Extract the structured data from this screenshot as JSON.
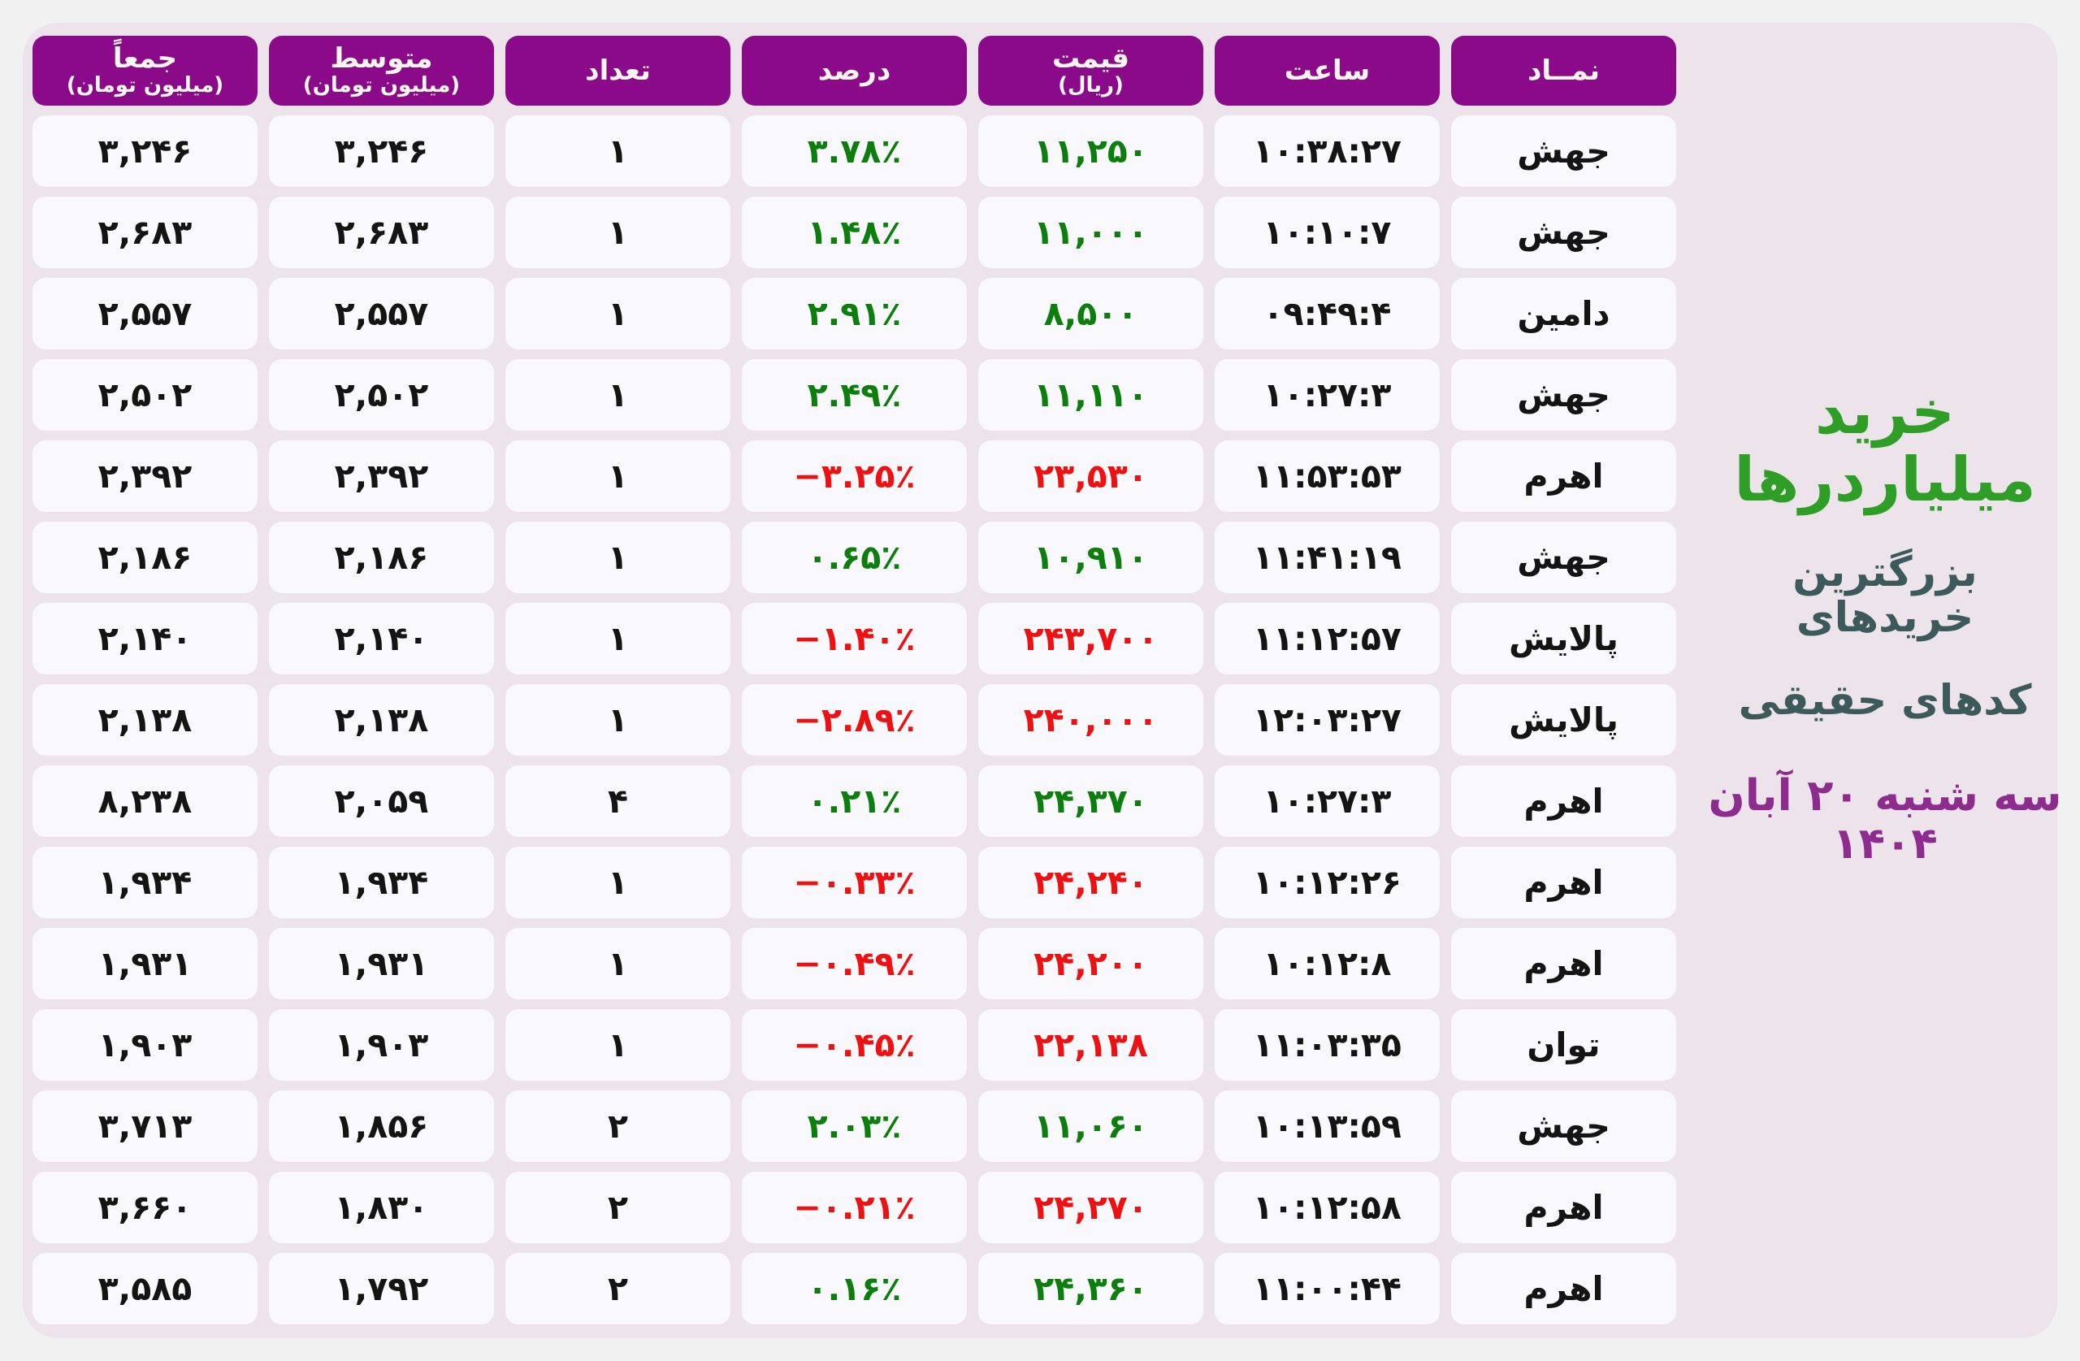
{
  "colors": {
    "page_background": "#f2f1f1",
    "board_background": "#ece4ea",
    "header_bg": "#8a0a8a",
    "cell_bg": "#f9f8fc",
    "up_green": "#0b7e0b",
    "down_red": "#ee1111",
    "text_dark": "#141414",
    "title_green": "#2f9e27",
    "subtitle_dark": "#3d5a5a",
    "date_purple": "#8e2b8e"
  },
  "side_panel": {
    "title": "خرید میلیاردرها",
    "subtitle_line1": "بزرگترین خریدهای",
    "subtitle_line2": "کدهای حقیقی",
    "date": "سه شنبه ۲۰ آبان ۱۴۰۴"
  },
  "table": {
    "columns": [
      {
        "key": "symbol",
        "label": "نمــاد"
      },
      {
        "key": "time",
        "label": "ساعت"
      },
      {
        "key": "price",
        "label": "قیمت",
        "sublabel": "(ریال)"
      },
      {
        "key": "percent",
        "label": "درصد"
      },
      {
        "key": "count",
        "label": "تعداد"
      },
      {
        "key": "avg",
        "label": "متوسط",
        "sublabel": "(میلیون تومان)"
      },
      {
        "key": "total",
        "label": "جمعاً",
        "sublabel": "(میلیون تومان)"
      }
    ],
    "rows": [
      {
        "symbol": "جهش",
        "time": "۱۰:۳۸:۲۷",
        "price": "۱۱,۲۵۰",
        "percent": "۳.۷۸٪",
        "trend": "up",
        "count": "۱",
        "avg": "۳,۲۴۶",
        "total": "۳,۲۴۶"
      },
      {
        "symbol": "جهش",
        "time": "۱۰:۱۰:۷",
        "price": "۱۱,۰۰۰",
        "percent": "۱.۴۸٪",
        "trend": "up",
        "count": "۱",
        "avg": "۲,۶۸۳",
        "total": "۲,۶۸۳"
      },
      {
        "symbol": "دامین",
        "time": "۰۹:۴۹:۴",
        "price": "۸,۵۰۰",
        "percent": "۲.۹۱٪",
        "trend": "up",
        "count": "۱",
        "avg": "۲,۵۵۷",
        "total": "۲,۵۵۷"
      },
      {
        "symbol": "جهش",
        "time": "۱۰:۲۷:۳",
        "price": "۱۱,۱۱۰",
        "percent": "۲.۴۹٪",
        "trend": "up",
        "count": "۱",
        "avg": "۲,۵۰۲",
        "total": "۲,۵۰۲"
      },
      {
        "symbol": "اهرم",
        "time": "۱۱:۵۳:۵۳",
        "price": "۲۳,۵۳۰",
        "percent": "−۳.۲۵٪",
        "trend": "down",
        "count": "۱",
        "avg": "۲,۳۹۲",
        "total": "۲,۳۹۲"
      },
      {
        "symbol": "جهش",
        "time": "۱۱:۴۱:۱۹",
        "price": "۱۰,۹۱۰",
        "percent": "۰.۶۵٪",
        "trend": "up",
        "count": "۱",
        "avg": "۲,۱۸۶",
        "total": "۲,۱۸۶"
      },
      {
        "symbol": "پالایش",
        "time": "۱۱:۱۲:۵۷",
        "price": "۲۴۳,۷۰۰",
        "percent": "−۱.۴۰٪",
        "trend": "down",
        "count": "۱",
        "avg": "۲,۱۴۰",
        "total": "۲,۱۴۰"
      },
      {
        "symbol": "پالایش",
        "time": "۱۲:۰۳:۲۷",
        "price": "۲۴۰,۰۰۰",
        "percent": "−۲.۸۹٪",
        "trend": "down",
        "count": "۱",
        "avg": "۲,۱۳۸",
        "total": "۲,۱۳۸"
      },
      {
        "symbol": "اهرم",
        "time": "۱۰:۲۷:۳",
        "price": "۲۴,۳۷۰",
        "percent": "۰.۲۱٪",
        "trend": "up",
        "count": "۴",
        "avg": "۲,۰۵۹",
        "total": "۸,۲۳۸"
      },
      {
        "symbol": "اهرم",
        "time": "۱۰:۱۲:۲۶",
        "price": "۲۴,۲۴۰",
        "percent": "−۰.۳۳٪",
        "trend": "down",
        "count": "۱",
        "avg": "۱,۹۳۴",
        "total": "۱,۹۳۴"
      },
      {
        "symbol": "اهرم",
        "time": "۱۰:۱۲:۸",
        "price": "۲۴,۲۰۰",
        "percent": "−۰.۴۹٪",
        "trend": "down",
        "count": "۱",
        "avg": "۱,۹۳۱",
        "total": "۱,۹۳۱"
      },
      {
        "symbol": "توان",
        "time": "۱۱:۰۳:۳۵",
        "price": "۲۲,۱۳۸",
        "percent": "−۰.۴۵٪",
        "trend": "down",
        "count": "۱",
        "avg": "۱,۹۰۳",
        "total": "۱,۹۰۳"
      },
      {
        "symbol": "جهش",
        "time": "۱۰:۱۳:۵۹",
        "price": "۱۱,۰۶۰",
        "percent": "۲.۰۳٪",
        "trend": "up",
        "count": "۲",
        "avg": "۱,۸۵۶",
        "total": "۳,۷۱۳"
      },
      {
        "symbol": "اهرم",
        "time": "۱۰:۱۲:۵۸",
        "price": "۲۴,۲۷۰",
        "percent": "−۰.۲۱٪",
        "trend": "down",
        "count": "۲",
        "avg": "۱,۸۳۰",
        "total": "۳,۶۶۰"
      },
      {
        "symbol": "اهرم",
        "time": "۱۱:۰۰:۴۴",
        "price": "۲۴,۳۶۰",
        "percent": "۰.۱۶٪",
        "trend": "up",
        "count": "۲",
        "avg": "۱,۷۹۲",
        "total": "۳,۵۸۵"
      }
    ]
  },
  "chart_data": {
    "type": "table",
    "title": "خرید میلیاردرها",
    "subtitle": "بزرگترین خریدهای کدهای حقیقی",
    "date": "سه شنبه ۲۰ آبان ۱۴۰۴",
    "columns": [
      "نماد",
      "ساعت",
      "قیمت (ریال)",
      "درصد",
      "تعداد",
      "متوسط (میلیون تومان)",
      "جمعاً (میلیون تومان)"
    ],
    "rows": [
      [
        "جهش",
        "10:38:27",
        11250,
        3.78,
        1,
        3246,
        3246
      ],
      [
        "جهش",
        "10:10:7",
        11000,
        1.48,
        1,
        2683,
        2683
      ],
      [
        "دامین",
        "09:49:4",
        8500,
        2.91,
        1,
        2557,
        2557
      ],
      [
        "جهش",
        "10:27:3",
        11110,
        2.49,
        1,
        2502,
        2502
      ],
      [
        "اهرم",
        "11:53:53",
        23530,
        -3.25,
        1,
        2392,
        2392
      ],
      [
        "جهش",
        "11:41:19",
        10910,
        0.65,
        1,
        2186,
        2186
      ],
      [
        "پالایش",
        "11:12:57",
        243700,
        -1.4,
        1,
        2140,
        2140
      ],
      [
        "پالایش",
        "12:03:27",
        240000,
        -2.89,
        1,
        2138,
        2138
      ],
      [
        "اهرم",
        "10:27:3",
        24370,
        0.21,
        4,
        2059,
        8238
      ],
      [
        "اهرم",
        "10:12:26",
        24240,
        -0.33,
        1,
        1934,
        1934
      ],
      [
        "اهرم",
        "10:12:8",
        24200,
        -0.49,
        1,
        1931,
        1931
      ],
      [
        "توان",
        "11:03:35",
        22138,
        -0.45,
        1,
        1903,
        1903
      ],
      [
        "جهش",
        "10:13:59",
        11060,
        2.03,
        2,
        1856,
        3713
      ],
      [
        "اهرم",
        "10:12:58",
        24270,
        -0.21,
        2,
        1830,
        3660
      ],
      [
        "اهرم",
        "11:00:44",
        24360,
        0.16,
        2,
        1792,
        3585
      ]
    ]
  }
}
